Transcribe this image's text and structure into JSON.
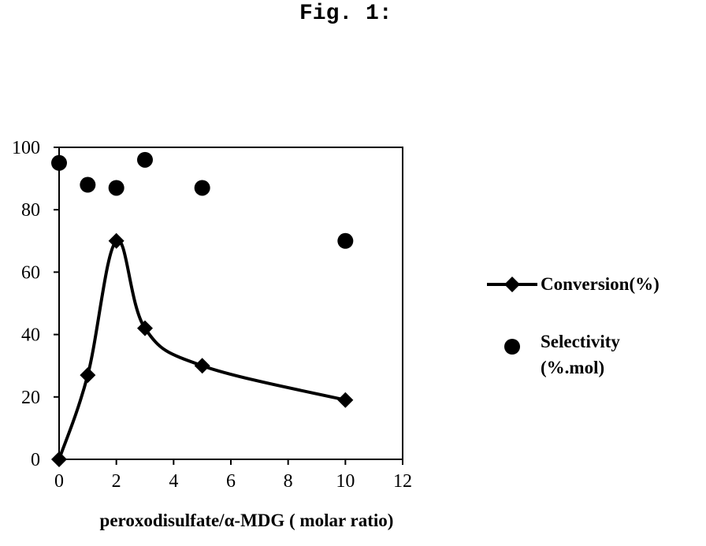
{
  "figure_label": "Fig. 1:",
  "chart_data": {
    "type": "line",
    "title": "",
    "xlabel": "peroxodisulfate/α-MDG ( molar ratio)",
    "ylabel": "",
    "xlim": [
      0,
      12
    ],
    "ylim": [
      0,
      100
    ],
    "x_ticks": [
      "0",
      "2",
      "4",
      "6",
      "8",
      "10",
      "12"
    ],
    "y_ticks": [
      "0",
      "20",
      "40",
      "60",
      "80",
      "100"
    ],
    "grid": false,
    "legend_position": "right",
    "series": [
      {
        "name": "Conversion(%)",
        "style": "smoothed line with diamond markers",
        "color": "#000000",
        "x": [
          0,
          1,
          2,
          3,
          5,
          10
        ],
        "y": [
          0,
          27,
          70,
          42,
          30,
          19
        ]
      },
      {
        "name": "Selectivity (%.mol)",
        "name_lines": [
          "Selectivity",
          "(%.mol)"
        ],
        "style": "circle markers only",
        "color": "#000000",
        "x": [
          0,
          1,
          2,
          3,
          5,
          10
        ],
        "y": [
          95,
          88,
          87,
          96,
          87,
          70
        ]
      }
    ]
  }
}
